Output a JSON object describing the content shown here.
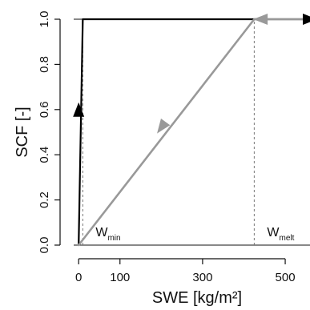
{
  "chart_data": {
    "type": "line",
    "xlabel": "SWE [kg/m²]",
    "ylabel": "SCF [-]",
    "xlim": [
      -12,
      560
    ],
    "ylim": [
      0.0,
      1.0
    ],
    "x_ticks": [
      0,
      100,
      300,
      500
    ],
    "y_ticks": [
      0.0,
      0.2,
      0.4,
      0.6,
      0.8,
      1.0
    ],
    "x_tick_labels": [
      "0",
      "100",
      "300",
      "500"
    ],
    "y_tick_labels": [
      "0.0",
      "0.2",
      "0.4",
      "0.6",
      "0.8",
      "1.0"
    ],
    "grid": false,
    "series": [
      {
        "role": "accumulation",
        "color": "#000000",
        "x": [
          0,
          10,
          10,
          560
        ],
        "y": [
          0.0,
          1.0,
          1.0,
          1.0
        ]
      },
      {
        "role": "melt",
        "color": "#999999",
        "x": [
          0,
          425,
          560
        ],
        "y": [
          0.0,
          1.0,
          1.0
        ]
      }
    ],
    "reference_lines": [
      {
        "label_main": "W",
        "label_sub": "min",
        "x": 10
      },
      {
        "label_main": "W",
        "label_sub": "melt",
        "x": 425
      }
    ],
    "arrows": [
      {
        "series": "accumulation",
        "color": "#000000",
        "at": [
          0,
          0.6
        ],
        "direction": "up"
      },
      {
        "series": "accumulation",
        "color": "#000000",
        "at": [
          560,
          1.0
        ],
        "direction": "right"
      },
      {
        "series": "melt",
        "color": "#999999",
        "at": [
          440,
          1.0
        ],
        "direction": "left"
      },
      {
        "series": "melt",
        "color": "#999999",
        "at": [
          200,
          0.52
        ],
        "direction": "down-left"
      }
    ]
  }
}
